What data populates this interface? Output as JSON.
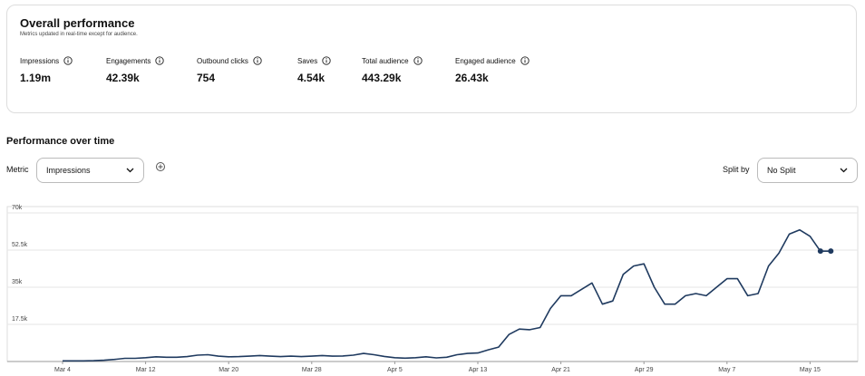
{
  "header": {
    "title": "Overall performance",
    "subtitle": "Metrics updated in real-time except for audience."
  },
  "metrics": [
    {
      "label": "Impressions",
      "value": "1.19m"
    },
    {
      "label": "Engagements",
      "value": "42.39k"
    },
    {
      "label": "Outbound clicks",
      "value": "754"
    },
    {
      "label": "Saves",
      "value": "4.54k"
    },
    {
      "label": "Total audience",
      "value": "443.29k"
    },
    {
      "label": "Engaged audience",
      "value": "26.43k"
    }
  ],
  "section_title": "Performance over time",
  "controls": {
    "metric_label": "Metric",
    "metric_value": "Impressions",
    "split_label": "Split by",
    "split_value": "No Split"
  },
  "chart_data": {
    "type": "line",
    "x": [
      "Mar 4",
      "Mar 5",
      "Mar 6",
      "Mar 7",
      "Mar 8",
      "Mar 9",
      "Mar 10",
      "Mar 11",
      "Mar 12",
      "Mar 13",
      "Mar 14",
      "Mar 15",
      "Mar 16",
      "Mar 17",
      "Mar 18",
      "Mar 19",
      "Mar 20",
      "Mar 21",
      "Mar 22",
      "Mar 23",
      "Mar 24",
      "Mar 25",
      "Mar 26",
      "Mar 27",
      "Mar 28",
      "Mar 29",
      "Mar 30",
      "Mar 31",
      "Apr 1",
      "Apr 2",
      "Apr 3",
      "Apr 4",
      "Apr 5",
      "Apr 6",
      "Apr 7",
      "Apr 8",
      "Apr 9",
      "Apr 10",
      "Apr 11",
      "Apr 12",
      "Apr 13",
      "Apr 14",
      "Apr 15",
      "Apr 16",
      "Apr 17",
      "Apr 18",
      "Apr 19",
      "Apr 20",
      "Apr 21",
      "Apr 22",
      "Apr 23",
      "Apr 24",
      "Apr 25",
      "Apr 26",
      "Apr 27",
      "Apr 28",
      "Apr 29",
      "Apr 30",
      "May 1",
      "May 2",
      "May 3",
      "May 4",
      "May 5",
      "May 6",
      "May 7",
      "May 8",
      "May 9",
      "May 10",
      "May 11",
      "May 12",
      "May 13",
      "May 14",
      "May 15",
      "May 16",
      "May 17"
    ],
    "series": [
      {
        "name": "Impressions",
        "color": "#1f3a5f",
        "values": [
          300,
          300,
          300,
          400,
          600,
          1000,
          1500,
          1500,
          1800,
          2200,
          2000,
          2000,
          2300,
          3000,
          3200,
          2500,
          2200,
          2300,
          2500,
          2800,
          2500,
          2300,
          2500,
          2300,
          2500,
          2800,
          2500,
          2600,
          3000,
          3800,
          3200,
          2400,
          1800,
          1600,
          1800,
          2200,
          1700,
          2000,
          3200,
          3800,
          4000,
          5500,
          6800,
          12700,
          15300,
          15000,
          16000,
          25000,
          31000,
          31000,
          34000,
          37000,
          27000,
          28500,
          41000,
          45000,
          46000,
          35000,
          27000,
          27000,
          31000,
          32000,
          31000,
          35000,
          39000,
          39000,
          31000,
          32000,
          45000,
          51000,
          60000,
          62000,
          59000,
          52000,
          52000
        ]
      }
    ],
    "xticks": [
      "Mar 4",
      "Mar 12",
      "Mar 20",
      "Mar 28",
      "Apr 5",
      "Apr 13",
      "Apr 21",
      "Apr 29",
      "May 7",
      "May 15"
    ],
    "ylim": [
      0,
      70000
    ],
    "yticks": [
      {
        "value": 17500,
        "label": "17.5k"
      },
      {
        "value": 35000,
        "label": "35k"
      },
      {
        "value": 52500,
        "label": "52.5k"
      },
      {
        "value": 70000,
        "label": "70k"
      }
    ],
    "grid": true
  }
}
